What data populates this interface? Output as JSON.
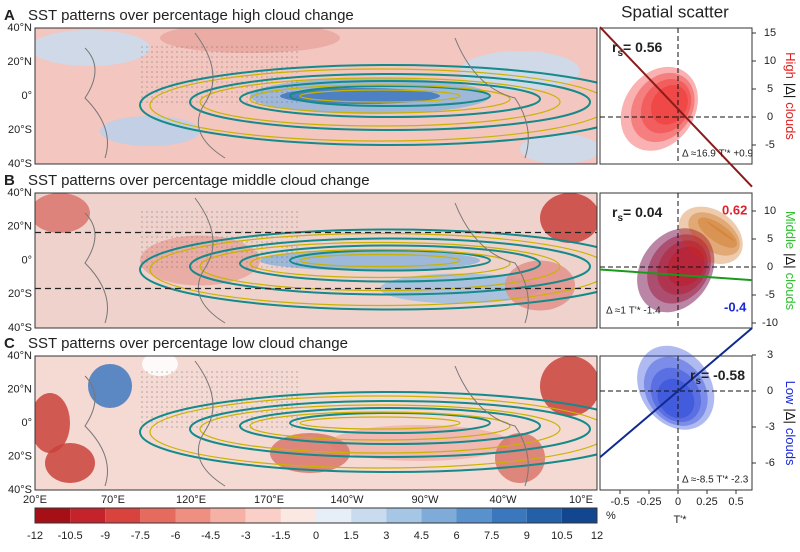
{
  "scatter_title": "Spatial scatter",
  "panels": [
    {
      "label": "A",
      "title": "SST patterns over percentage high cloud change",
      "scatter": {
        "r_symbol": "r",
        "r_sub": "s",
        "r_value": "= 0.56",
        "yticks": [
          15,
          10,
          5,
          0,
          -5
        ],
        "side_label": [
          "High",
          "|Δ|",
          "clouds"
        ],
        "fit": "Δ ≈16.9 T'* +0.9"
      }
    },
    {
      "label": "B",
      "title": "SST patterns over percentage middle cloud change",
      "scatter": {
        "r_symbol": "r",
        "r_sub": "s",
        "r_value": "= 0.04",
        "yticks": [
          10,
          5,
          0,
          -5,
          -10
        ],
        "side_label": [
          "Middle",
          "|Δ|",
          "clouds"
        ],
        "fit": "Δ ≈1 T'* -1.4",
        "extra_labels": [
          "0.62",
          "-0.4"
        ]
      }
    },
    {
      "label": "C",
      "title": "SST patterns over percentage low cloud change",
      "scatter": {
        "r_symbol": "r",
        "r_sub": "s",
        "r_value": "= -0.58",
        "yticks": [
          3,
          0,
          -3,
          -6
        ],
        "side_label": [
          "Low",
          "|Δ|",
          "clouds"
        ],
        "fit": "Δ ≈-8.5 T'* -2.3"
      }
    }
  ],
  "lat_labels": [
    "40°N",
    "20°N",
    "0°",
    "20°S",
    "40°S"
  ],
  "lon_labels": [
    "20°E",
    "70°E",
    "120°E",
    "170°E",
    "140°W",
    "90°W",
    "40°W",
    "10°E"
  ],
  "scatter_xticks": [
    -0.5,
    -0.25,
    0,
    0.25,
    0.5
  ],
  "scatter_xlabel": "T'*",
  "colorbar": {
    "ticks": [
      -12,
      -10.5,
      -9,
      -7.5,
      -6,
      -4.5,
      -3,
      -1.5,
      0,
      1.5,
      3,
      4.5,
      6,
      7.5,
      9,
      10.5,
      12
    ],
    "unit": "%"
  }
}
